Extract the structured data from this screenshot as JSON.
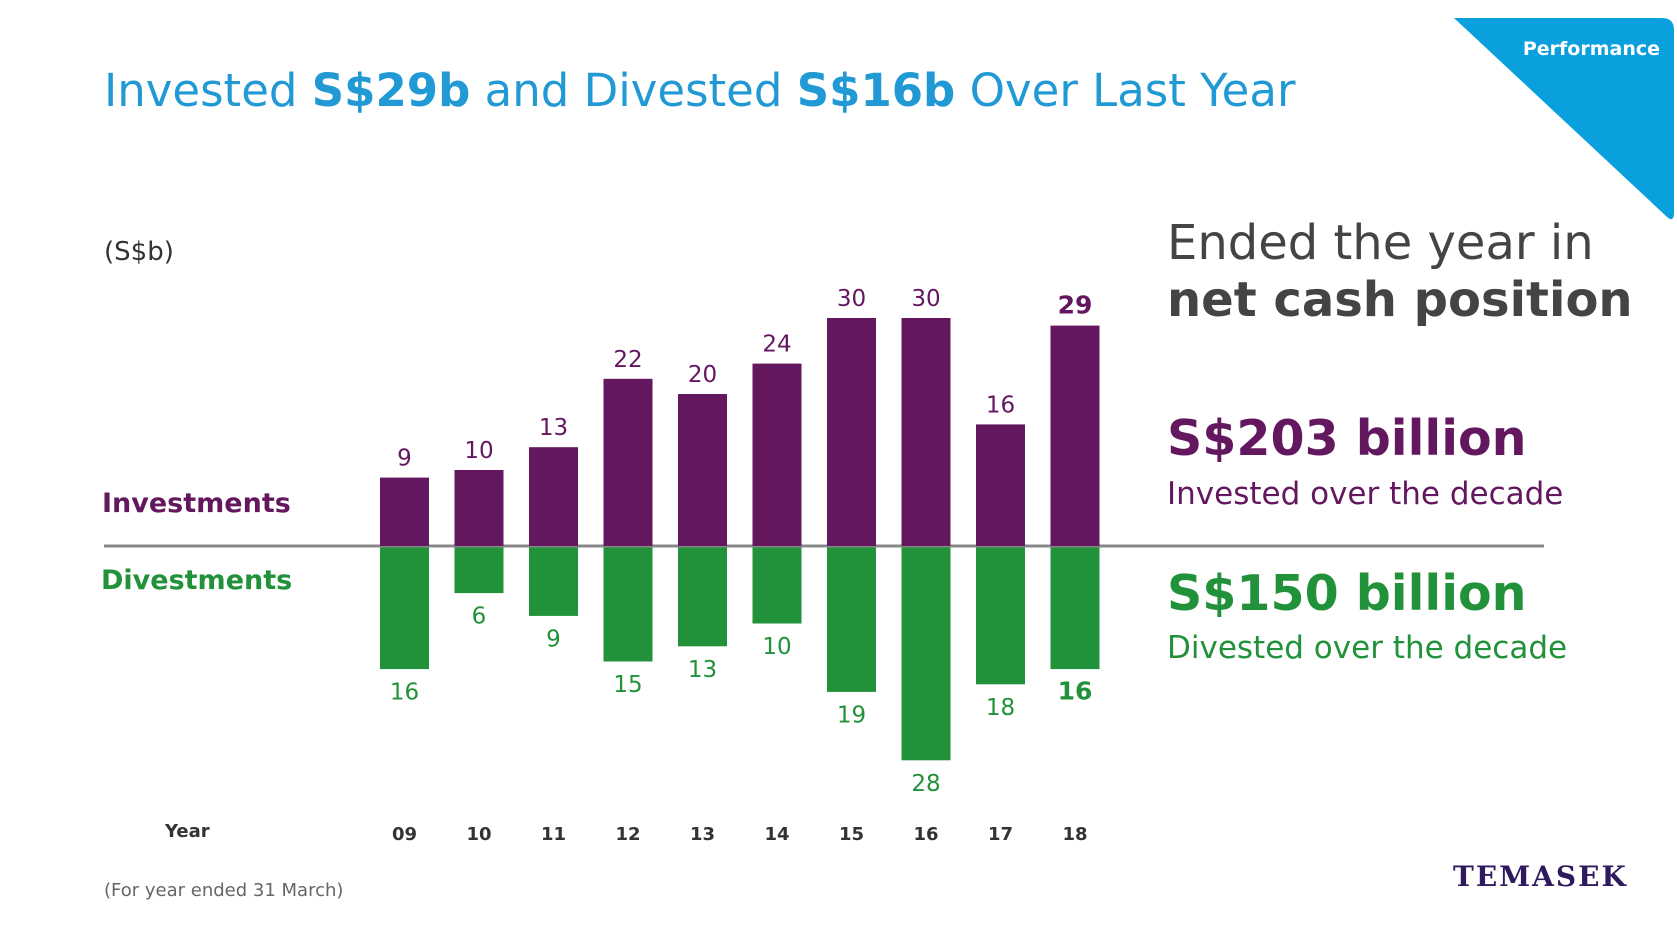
{
  "corner_tag": "Performance",
  "title": {
    "part1": "Invested ",
    "highlight1": "S$29b",
    "part2": " and Divested ",
    "highlight2": "S$16b",
    "part3": " Over Last Year"
  },
  "unit_label": "(S$b)",
  "side_panel": {
    "ended_line1": "Ended the year in",
    "ended_line2": "net cash position",
    "invested_total": "S$203 billion",
    "invested_caption": "Invested over the decade",
    "divested_total": "S$150 billion",
    "divested_caption": "Divested over the decade"
  },
  "footnote": "(For year ended 31 March)",
  "logo_text": "TEMASEK",
  "colors": {
    "investments": "#63175f",
    "divestments": "#21913a",
    "accent": "#2199d4",
    "axis": "#888888"
  },
  "chart_data": {
    "type": "bar",
    "categories": [
      "09",
      "10",
      "11",
      "12",
      "13",
      "14",
      "15",
      "16",
      "17",
      "18"
    ],
    "series": [
      {
        "name": "Investments",
        "values": [
          9,
          10,
          13,
          22,
          20,
          24,
          30,
          30,
          16,
          29
        ]
      },
      {
        "name": "Divestments",
        "values": [
          16,
          6,
          9,
          15,
          13,
          10,
          19,
          28,
          18,
          16
        ]
      }
    ],
    "xlabel": "Year",
    "ylabel": "(S$b)",
    "ylim": [
      -28,
      30
    ],
    "highlight_category": "18",
    "grid": false,
    "legend": "left"
  }
}
